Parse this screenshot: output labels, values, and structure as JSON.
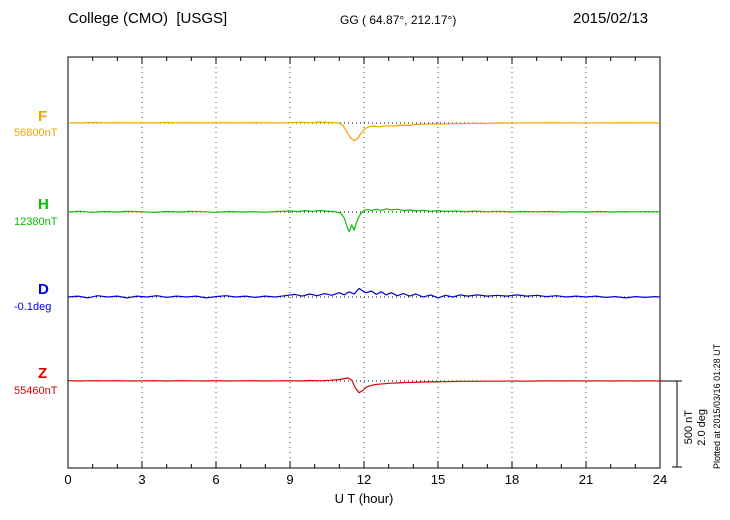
{
  "header": {
    "title": "College (CMO)  [USGS]",
    "subtitle": "GG ( 64.87°, 212.17°)",
    "date": "2015/02/13"
  },
  "chart_data": {
    "type": "line",
    "title": "College (CMO) [USGS] magnetogram 2015/02/13",
    "xlabel": "U T (hour)",
    "ylabel": "",
    "x_range": [
      0,
      24
    ],
    "x_major_ticks": [
      0,
      3,
      6,
      9,
      12,
      15,
      18,
      21,
      24
    ],
    "x_tick_labels": [
      "0",
      "3",
      "6",
      "9",
      "12",
      "15",
      "18",
      "21",
      "24"
    ],
    "grid": "dotted vertical lines at 3-hour intervals; dotted horizontal baseline per trace",
    "legend_position": "left margin labels",
    "scale_bar": {
      "nT": 500,
      "deg": 2.0,
      "nT_label": "500 nT",
      "deg_label": "2.0 deg"
    },
    "plotted_at": "Plotted at 2015/03/16 01:28 UT",
    "series": [
      {
        "id": "F",
        "label": "F",
        "baseline_label": "56800nT",
        "baseline_value": 56800,
        "unit": "nT",
        "color": "#f5a300",
        "points": [
          [
            0,
            2
          ],
          [
            0.5,
            0
          ],
          [
            1,
            3
          ],
          [
            1.5,
            1
          ],
          [
            2,
            2
          ],
          [
            2.5,
            0
          ],
          [
            3,
            2
          ],
          [
            3.5,
            1
          ],
          [
            4,
            3
          ],
          [
            4.5,
            1
          ],
          [
            5,
            2
          ],
          [
            5.5,
            0
          ],
          [
            6,
            2
          ],
          [
            6.5,
            1
          ],
          [
            7,
            0
          ],
          [
            7.5,
            2
          ],
          [
            8,
            1
          ],
          [
            8.5,
            0
          ],
          [
            9,
            2
          ],
          [
            9.4,
            4
          ],
          [
            9.8,
            2
          ],
          [
            10.2,
            5
          ],
          [
            10.6,
            3
          ],
          [
            11,
            0
          ],
          [
            11.15,
            -15
          ],
          [
            11.3,
            -50
          ],
          [
            11.45,
            -85
          ],
          [
            11.6,
            -103
          ],
          [
            11.75,
            -90
          ],
          [
            11.9,
            -55
          ],
          [
            12.05,
            -32
          ],
          [
            12.2,
            -22
          ],
          [
            12.4,
            -18
          ],
          [
            12.6,
            -22
          ],
          [
            12.9,
            -16
          ],
          [
            13.2,
            -18
          ],
          [
            13.5,
            -12
          ],
          [
            13.8,
            -14
          ],
          [
            14.1,
            -9
          ],
          [
            14.5,
            -7
          ],
          [
            14.9,
            -5
          ],
          [
            15.3,
            -6
          ],
          [
            15.7,
            -3
          ],
          [
            16.1,
            -4
          ],
          [
            16.5,
            -1
          ],
          [
            17,
            -2
          ],
          [
            17.5,
            0
          ],
          [
            18,
            -1
          ],
          [
            18.5,
            1
          ],
          [
            19,
            0
          ],
          [
            19.5,
            2
          ],
          [
            20,
            0
          ],
          [
            20.5,
            1
          ],
          [
            21,
            -1
          ],
          [
            21.5,
            1
          ],
          [
            22,
            0
          ],
          [
            22.5,
            2
          ],
          [
            23,
            0
          ],
          [
            23.5,
            1
          ],
          [
            24,
            0
          ]
        ]
      },
      {
        "id": "H",
        "label": "H",
        "baseline_label": "12380nT",
        "baseline_value": 12380,
        "unit": "nT",
        "color": "#00c000",
        "points": [
          [
            0,
            0
          ],
          [
            0.5,
            4
          ],
          [
            1,
            -2
          ],
          [
            1.5,
            3
          ],
          [
            2,
            0
          ],
          [
            2.5,
            4
          ],
          [
            3,
            1
          ],
          [
            3.5,
            -2
          ],
          [
            4,
            3
          ],
          [
            4.5,
            0
          ],
          [
            5,
            4
          ],
          [
            5.5,
            1
          ],
          [
            6,
            -2
          ],
          [
            6.5,
            3
          ],
          [
            7,
            0
          ],
          [
            7.5,
            2
          ],
          [
            8,
            -1
          ],
          [
            8.5,
            3
          ],
          [
            9,
            6
          ],
          [
            9.3,
            2
          ],
          [
            9.6,
            8
          ],
          [
            9.9,
            4
          ],
          [
            10.2,
            9
          ],
          [
            10.5,
            5
          ],
          [
            10.8,
            2
          ],
          [
            11.05,
            -5
          ],
          [
            11.2,
            -35
          ],
          [
            11.3,
            -80
          ],
          [
            11.4,
            -115
          ],
          [
            11.5,
            -75
          ],
          [
            11.6,
            -105
          ],
          [
            11.7,
            -60
          ],
          [
            11.8,
            -25
          ],
          [
            11.9,
            -5
          ],
          [
            12,
            8
          ],
          [
            12.15,
            14
          ],
          [
            12.3,
            8
          ],
          [
            12.5,
            16
          ],
          [
            12.7,
            10
          ],
          [
            12.9,
            18
          ],
          [
            13.1,
            12
          ],
          [
            13.35,
            16
          ],
          [
            13.6,
            8
          ],
          [
            13.85,
            12
          ],
          [
            14.1,
            6
          ],
          [
            14.4,
            10
          ],
          [
            14.7,
            4
          ],
          [
            15,
            8
          ],
          [
            15.3,
            3
          ],
          [
            15.7,
            6
          ],
          [
            16.1,
            2
          ],
          [
            16.5,
            5
          ],
          [
            17,
            1
          ],
          [
            17.5,
            4
          ],
          [
            18,
            0
          ],
          [
            18.5,
            3
          ],
          [
            19,
            1
          ],
          [
            19.5,
            3
          ],
          [
            20,
            0
          ],
          [
            20.5,
            2
          ],
          [
            21,
            0
          ],
          [
            21.5,
            3
          ],
          [
            22,
            0
          ],
          [
            22.5,
            2
          ],
          [
            23,
            1
          ],
          [
            23.5,
            2
          ],
          [
            24,
            1
          ]
        ]
      },
      {
        "id": "D",
        "label": "D",
        "baseline_label": "-0.1deg",
        "baseline_value": -0.1,
        "unit": "deg",
        "color": "#0000e0",
        "points": [
          [
            0,
            0
          ],
          [
            0.4,
            0.02
          ],
          [
            0.8,
            -0.02
          ],
          [
            1.2,
            0.03
          ],
          [
            1.6,
            0
          ],
          [
            2,
            0.02
          ],
          [
            2.4,
            -0.02
          ],
          [
            2.8,
            0.02
          ],
          [
            3.2,
            0
          ],
          [
            3.6,
            0.03
          ],
          [
            4,
            -0.01
          ],
          [
            4.4,
            0.02
          ],
          [
            4.8,
            0
          ],
          [
            5.2,
            0.02
          ],
          [
            5.6,
            -0.02
          ],
          [
            6,
            0.01
          ],
          [
            6.4,
            0.03
          ],
          [
            6.8,
            0
          ],
          [
            7.2,
            0.02
          ],
          [
            7.6,
            -0.01
          ],
          [
            8,
            0.02
          ],
          [
            8.4,
            0
          ],
          [
            8.8,
            0.03
          ],
          [
            9.2,
            0.06
          ],
          [
            9.5,
            0.02
          ],
          [
            9.8,
            0.07
          ],
          [
            10.1,
            0.03
          ],
          [
            10.4,
            0.08
          ],
          [
            10.7,
            0.04
          ],
          [
            11,
            0.1
          ],
          [
            11.2,
            0.05
          ],
          [
            11.4,
            0.12
          ],
          [
            11.6,
            0.07
          ],
          [
            11.8,
            0.2
          ],
          [
            11.95,
            0.14
          ],
          [
            12.1,
            0.1
          ],
          [
            12.3,
            0.14
          ],
          [
            12.5,
            0.06
          ],
          [
            12.7,
            0.12
          ],
          [
            12.9,
            0.05
          ],
          [
            13.1,
            0.1
          ],
          [
            13.35,
            0.03
          ],
          [
            13.6,
            0.08
          ],
          [
            13.85,
            0.02
          ],
          [
            14.1,
            0.07
          ],
          [
            14.4,
            0
          ],
          [
            14.7,
            0.05
          ],
          [
            15,
            -0.02
          ],
          [
            15.3,
            0.04
          ],
          [
            15.6,
            0
          ],
          [
            15.9,
            0.05
          ],
          [
            16.2,
            0.02
          ],
          [
            16.6,
            0.05
          ],
          [
            17,
            0.02
          ],
          [
            17.4,
            0.04
          ],
          [
            17.8,
            0.02
          ],
          [
            18.2,
            0.05
          ],
          [
            18.6,
            0.02
          ],
          [
            19,
            0.04
          ],
          [
            19.4,
            0.01
          ],
          [
            19.8,
            0.03
          ],
          [
            20.2,
            0
          ],
          [
            20.6,
            0.02
          ],
          [
            21,
            0
          ],
          [
            21.4,
            0.02
          ],
          [
            21.8,
            -0.01
          ],
          [
            22.2,
            0.01
          ],
          [
            22.6,
            -0.02
          ],
          [
            23,
            0.01
          ],
          [
            23.4,
            -0.01
          ],
          [
            23.8,
            0.01
          ],
          [
            24,
            0
          ]
        ]
      },
      {
        "id": "Z",
        "label": "Z",
        "baseline_label": "55460nT",
        "baseline_value": 55460,
        "unit": "nT",
        "color": "#e00000",
        "points": [
          [
            0,
            2
          ],
          [
            0.5,
            0
          ],
          [
            1,
            2
          ],
          [
            1.5,
            1
          ],
          [
            2,
            2
          ],
          [
            2.5,
            0
          ],
          [
            3,
            1
          ],
          [
            3.5,
            2
          ],
          [
            4,
            0
          ],
          [
            4.5,
            2
          ],
          [
            5,
            1
          ],
          [
            5.5,
            0
          ],
          [
            6,
            2
          ],
          [
            6.5,
            0
          ],
          [
            7,
            1
          ],
          [
            7.5,
            2
          ],
          [
            8,
            0
          ],
          [
            8.5,
            1
          ],
          [
            9,
            2
          ],
          [
            9.4,
            0
          ],
          [
            9.8,
            3
          ],
          [
            10.2,
            1
          ],
          [
            10.6,
            4
          ],
          [
            11,
            8
          ],
          [
            11.2,
            14
          ],
          [
            11.35,
            18
          ],
          [
            11.5,
            5
          ],
          [
            11.65,
            -40
          ],
          [
            11.8,
            -68
          ],
          [
            11.95,
            -55
          ],
          [
            12.1,
            -35
          ],
          [
            12.3,
            -25
          ],
          [
            12.5,
            -20
          ],
          [
            12.8,
            -16
          ],
          [
            13.1,
            -13
          ],
          [
            13.4,
            -11
          ],
          [
            13.7,
            -9
          ],
          [
            14,
            -8
          ],
          [
            14.4,
            -6
          ],
          [
            14.8,
            -5
          ],
          [
            15.2,
            -4
          ],
          [
            15.6,
            -3
          ],
          [
            16,
            -2
          ],
          [
            16.5,
            -2
          ],
          [
            17,
            -1
          ],
          [
            17.5,
            -1
          ],
          [
            18,
            0
          ],
          [
            18.5,
            -1
          ],
          [
            19,
            0
          ],
          [
            19.5,
            1
          ],
          [
            20,
            0
          ],
          [
            20.5,
            1
          ],
          [
            21,
            0
          ],
          [
            21.5,
            1
          ],
          [
            22,
            0
          ],
          [
            22.5,
            1
          ],
          [
            23,
            0
          ],
          [
            23.5,
            1
          ],
          [
            24,
            0
          ]
        ]
      }
    ]
  }
}
